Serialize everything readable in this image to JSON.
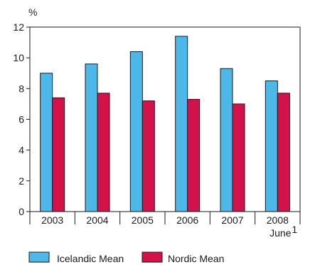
{
  "chart_data": {
    "type": "bar",
    "ylabel": "%",
    "ylim": [
      0,
      12
    ],
    "yticks": [
      0,
      2,
      4,
      6,
      8,
      10,
      12
    ],
    "categories": [
      "2003",
      "2004",
      "2005",
      "2006",
      "2007",
      "2008"
    ],
    "category_sublabels": [
      "",
      "",
      "",
      "",
      "",
      "June"
    ],
    "category_footnotes": [
      "",
      "",
      "",
      "",
      "",
      "1"
    ],
    "series": [
      {
        "name": "Icelandic Mean",
        "color": "#4db8e8",
        "values": [
          9.0,
          9.6,
          10.4,
          11.4,
          9.3,
          8.5
        ]
      },
      {
        "name": "Nordic Mean",
        "color": "#d4124a",
        "values": [
          7.4,
          7.7,
          7.2,
          7.3,
          7.0,
          7.7
        ]
      }
    ],
    "grid": false,
    "legend_position": "bottom-left"
  }
}
